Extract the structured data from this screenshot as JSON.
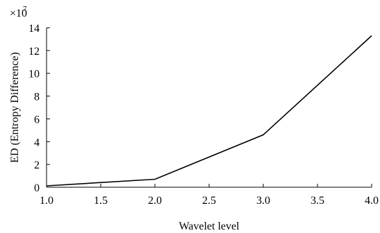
{
  "chart_data": {
    "type": "line",
    "title": "",
    "xlabel": "Wavelet level",
    "ylabel": "ED (Entropy Difference)",
    "y_multiplier": "×10",
    "y_exponent": "7",
    "xlim": [
      1.0,
      4.0
    ],
    "ylim": [
      0,
      14
    ],
    "grid": false,
    "x_ticks": [
      "1.0",
      "1.5",
      "2.0",
      "2.5",
      "3.0",
      "3.5",
      "4.0"
    ],
    "y_ticks": [
      "0",
      "2",
      "4",
      "6",
      "8",
      "10",
      "12",
      "14"
    ],
    "line_color": "#000000",
    "series": [
      {
        "x": [
          1.0,
          2.0,
          3.0,
          4.0
        ],
        "y": [
          0.12,
          0.7,
          4.6,
          13.3
        ]
      }
    ]
  }
}
